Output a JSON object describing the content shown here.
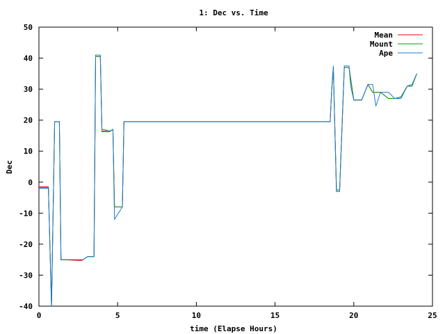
{
  "chart_data": {
    "type": "line",
    "title": "1: Dec vs. Time",
    "xlabel": "time (Elapse Hours)",
    "ylabel": "Dec",
    "xlim": [
      0,
      25
    ],
    "ylim": [
      -40,
      50
    ],
    "xticks": [
      0,
      5,
      10,
      15,
      20,
      25
    ],
    "yticks": [
      -40,
      -30,
      -20,
      -10,
      0,
      10,
      20,
      30,
      40,
      50
    ],
    "grid": false,
    "legend_position": "top-right",
    "series": [
      {
        "name": "Mean",
        "color": "#ff0000",
        "x": [
          0,
          0.6,
          0.65,
          0.8,
          1.0,
          1.3,
          1.4,
          1.5,
          2.7,
          2.8,
          3.1,
          3.5,
          3.6,
          3.9,
          4.0,
          4.5,
          4.7,
          4.8,
          5.3,
          5.4,
          5.6,
          18.5,
          18.6,
          18.7,
          18.9,
          19.1,
          19.4,
          19.7,
          20.0,
          20.5,
          20.9,
          21.2,
          21.7,
          22.2,
          22.6,
          23.0,
          23.4,
          23.7,
          24.0
        ],
        "y": [
          -1.5,
          -1.5,
          -11,
          -40,
          19.5,
          19.5,
          -25,
          -25,
          -25.3,
          -25,
          -24,
          -24,
          40.5,
          40.5,
          16.5,
          16.5,
          17,
          -8,
          -8,
          19.5,
          19.5,
          19.5,
          30,
          37,
          -3,
          -3,
          37,
          37,
          26.5,
          26.5,
          31.5,
          29,
          29,
          27,
          27,
          27.5,
          31,
          31,
          35
        ]
      },
      {
        "name": "Mount",
        "color": "#00a000",
        "x": [
          0,
          0.6,
          0.65,
          0.8,
          1.0,
          1.3,
          1.4,
          1.5,
          2.7,
          2.8,
          3.1,
          3.5,
          3.6,
          3.9,
          4.0,
          4.5,
          4.7,
          4.8,
          5.3,
          5.4,
          5.6,
          18.5,
          18.6,
          18.7,
          18.9,
          19.1,
          19.4,
          19.7,
          20.0,
          20.5,
          20.9,
          21.2,
          21.7,
          22.2,
          22.6,
          23.0,
          23.4,
          23.7,
          24.0
        ],
        "y": [
          -1.8,
          -1.8,
          -11,
          -40,
          19.5,
          19.5,
          -25,
          -25,
          -25,
          -25,
          -24,
          -24,
          40.5,
          40.5,
          16.3,
          16.3,
          17,
          -8,
          -8,
          19.5,
          19.5,
          19.5,
          30,
          36.5,
          -2.5,
          -2.5,
          37,
          37,
          26.5,
          26.5,
          31.5,
          29,
          29,
          27,
          27,
          27.5,
          31,
          31,
          35
        ]
      },
      {
        "name": "Ape",
        "color": "#1f78d4",
        "x": [
          0,
          0.6,
          0.65,
          0.75,
          0.8,
          1.0,
          1.3,
          1.4,
          1.5,
          2.7,
          2.8,
          3.1,
          3.5,
          3.6,
          3.9,
          4.0,
          4.1,
          4.5,
          4.7,
          4.8,
          5.3,
          5.4,
          5.6,
          18.5,
          18.6,
          18.7,
          18.9,
          19.1,
          19.4,
          19.7,
          19.8,
          20.0,
          20.5,
          20.9,
          21.2,
          21.4,
          21.7,
          22.2,
          22.6,
          23.0,
          23.4,
          23.7,
          24.0
        ],
        "y": [
          -2,
          -2,
          -11,
          -32,
          -40,
          19.5,
          19.5,
          -25,
          -25,
          -25,
          -25,
          -24,
          -24,
          41,
          41,
          17,
          17,
          16.5,
          17,
          -12,
          -8,
          19.5,
          19.5,
          19.5,
          30,
          37.5,
          -3,
          -3,
          37.5,
          37.5,
          31,
          26.5,
          26.5,
          31.5,
          31.5,
          24.5,
          29,
          29,
          27,
          27,
          31,
          31.5,
          35
        ]
      }
    ]
  }
}
